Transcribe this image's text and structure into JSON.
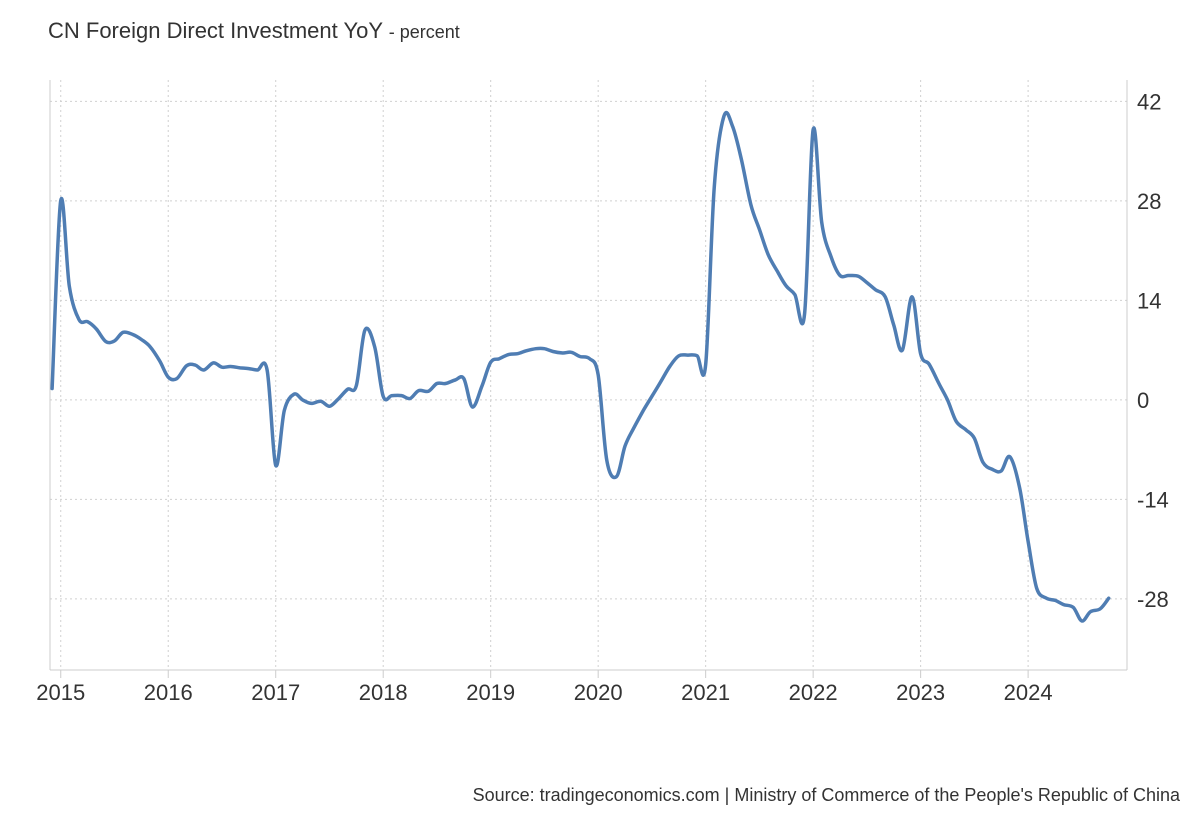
{
  "title": "CN Foreign Direct Investment YoY",
  "subtitle": "- percent",
  "source": "Source: tradingeconomics.com | Ministry of Commerce of the People's Republic of China",
  "colors": {
    "line": "#4f7db3",
    "grid": "#d0d0d0",
    "axis": "#cccccc",
    "text": "#333333"
  },
  "chart_data": {
    "type": "line",
    "title": "CN Foreign Direct Investment YoY",
    "ylabel": "percent",
    "xlabel": "",
    "ylim": [
      -38,
      45
    ],
    "xlim": [
      2014.9,
      2024.92
    ],
    "yticks": [
      42,
      28,
      14,
      0,
      -14,
      -28
    ],
    "xticks": [
      2015,
      2016,
      2017,
      2018,
      2019,
      2020,
      2021,
      2022,
      2023,
      2024
    ],
    "y_axis_position": "right",
    "grid": true,
    "series": [
      {
        "name": "",
        "points": [
          [
            2014.92,
            1.6
          ],
          [
            2015.0,
            28.0
          ],
          [
            2015.08,
            16.0
          ],
          [
            2015.17,
            11.3
          ],
          [
            2015.25,
            11.0
          ],
          [
            2015.33,
            10.0
          ],
          [
            2015.42,
            8.2
          ],
          [
            2015.5,
            8.3
          ],
          [
            2015.58,
            9.5
          ],
          [
            2015.67,
            9.2
          ],
          [
            2015.75,
            8.5
          ],
          [
            2015.83,
            7.5
          ],
          [
            2015.92,
            5.5
          ],
          [
            2016.0,
            3.2
          ],
          [
            2016.08,
            3.0
          ],
          [
            2016.17,
            4.8
          ],
          [
            2016.25,
            4.9
          ],
          [
            2016.33,
            4.2
          ],
          [
            2016.42,
            5.2
          ],
          [
            2016.5,
            4.6
          ],
          [
            2016.58,
            4.7
          ],
          [
            2016.67,
            4.5
          ],
          [
            2016.75,
            4.4
          ],
          [
            2016.83,
            4.2
          ],
          [
            2016.92,
            4.2
          ],
          [
            2017.0,
            -9.2
          ],
          [
            2017.08,
            -1.5
          ],
          [
            2017.17,
            0.8
          ],
          [
            2017.25,
            0.0
          ],
          [
            2017.33,
            -0.5
          ],
          [
            2017.42,
            -0.2
          ],
          [
            2017.5,
            -0.9
          ],
          [
            2017.58,
            0.1
          ],
          [
            2017.67,
            1.5
          ],
          [
            2017.75,
            2.0
          ],
          [
            2017.83,
            9.8
          ],
          [
            2017.92,
            7.5
          ],
          [
            2018.0,
            0.5
          ],
          [
            2018.08,
            0.6
          ],
          [
            2018.17,
            0.6
          ],
          [
            2018.25,
            0.2
          ],
          [
            2018.33,
            1.3
          ],
          [
            2018.42,
            1.2
          ],
          [
            2018.5,
            2.3
          ],
          [
            2018.58,
            2.3
          ],
          [
            2018.67,
            2.8
          ],
          [
            2018.75,
            3.0
          ],
          [
            2018.83,
            -1.0
          ],
          [
            2018.92,
            2.0
          ],
          [
            2019.0,
            5.3
          ],
          [
            2019.08,
            5.8
          ],
          [
            2019.17,
            6.4
          ],
          [
            2019.25,
            6.5
          ],
          [
            2019.33,
            6.9
          ],
          [
            2019.42,
            7.2
          ],
          [
            2019.5,
            7.2
          ],
          [
            2019.58,
            6.8
          ],
          [
            2019.67,
            6.6
          ],
          [
            2019.75,
            6.7
          ],
          [
            2019.83,
            6.1
          ],
          [
            2019.92,
            5.8
          ],
          [
            2020.0,
            3.5
          ],
          [
            2020.08,
            -8.5
          ],
          [
            2020.17,
            -10.8
          ],
          [
            2020.25,
            -6.5
          ],
          [
            2020.33,
            -4.0
          ],
          [
            2020.42,
            -1.5
          ],
          [
            2020.5,
            0.5
          ],
          [
            2020.58,
            2.5
          ],
          [
            2020.67,
            4.8
          ],
          [
            2020.75,
            6.2
          ],
          [
            2020.83,
            6.3
          ],
          [
            2020.92,
            6.2
          ],
          [
            2021.0,
            5.0
          ],
          [
            2021.08,
            30.0
          ],
          [
            2021.17,
            39.9
          ],
          [
            2021.25,
            38.5
          ],
          [
            2021.33,
            34.0
          ],
          [
            2021.42,
            27.5
          ],
          [
            2021.5,
            24.0
          ],
          [
            2021.58,
            20.5
          ],
          [
            2021.67,
            18.0
          ],
          [
            2021.75,
            16.0
          ],
          [
            2021.83,
            14.8
          ],
          [
            2021.92,
            12.0
          ],
          [
            2022.0,
            38.0
          ],
          [
            2022.08,
            25.0
          ],
          [
            2022.17,
            20.0
          ],
          [
            2022.25,
            17.5
          ],
          [
            2022.33,
            17.5
          ],
          [
            2022.42,
            17.4
          ],
          [
            2022.5,
            16.5
          ],
          [
            2022.58,
            15.5
          ],
          [
            2022.67,
            14.5
          ],
          [
            2022.75,
            10.5
          ],
          [
            2022.83,
            7.0
          ],
          [
            2022.92,
            14.5
          ],
          [
            2023.0,
            6.5
          ],
          [
            2023.08,
            5.0
          ],
          [
            2023.17,
            2.3
          ],
          [
            2023.25,
            0.0
          ],
          [
            2023.33,
            -3.0
          ],
          [
            2023.42,
            -4.2
          ],
          [
            2023.5,
            -5.4
          ],
          [
            2023.58,
            -8.8
          ],
          [
            2023.67,
            -9.8
          ],
          [
            2023.75,
            -10.0
          ],
          [
            2023.83,
            -8.0
          ],
          [
            2023.92,
            -12.3
          ],
          [
            2024.0,
            -19.9
          ],
          [
            2024.08,
            -26.5
          ],
          [
            2024.17,
            -27.9
          ],
          [
            2024.25,
            -28.2
          ],
          [
            2024.33,
            -28.8
          ],
          [
            2024.42,
            -29.2
          ],
          [
            2024.5,
            -31.1
          ],
          [
            2024.58,
            -29.8
          ],
          [
            2024.67,
            -29.4
          ],
          [
            2024.75,
            -27.9
          ]
        ]
      }
    ]
  }
}
